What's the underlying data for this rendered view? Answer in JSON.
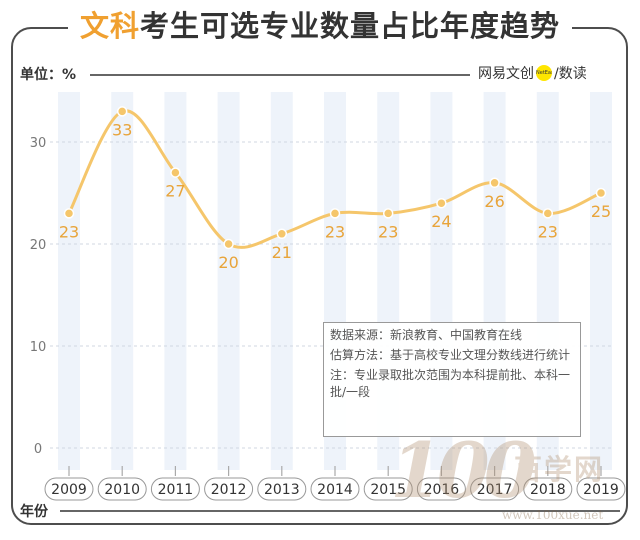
{
  "title_accent": "文科",
  "title_rest": "考生可选专业数量占比年度趋势",
  "unit_label": "单位：%",
  "brand": {
    "left": "网易文创",
    "dot": "NetEase",
    "right": "/数读"
  },
  "x_axis_title": "年份",
  "note": {
    "line1": "数据来源：新浪教育、中国教育在线",
    "line2": "估算方法：基于高校专业文理分数线进行统计",
    "line3": "注：专业录取批次范围为本科提前批、本科一批/一段"
  },
  "watermark": {
    "num": "100",
    "cn": "百学网",
    "url": "www.100xue.net"
  },
  "chart_data": {
    "type": "line",
    "categories": [
      "2009",
      "2010",
      "2011",
      "2012",
      "2013",
      "2014",
      "2015",
      "2016",
      "2017",
      "2018",
      "2019"
    ],
    "values": [
      23,
      33,
      27,
      20,
      21,
      23,
      23,
      24,
      26,
      23,
      25
    ],
    "yticks": [
      0,
      10,
      20,
      30
    ],
    "ylim": [
      0,
      35
    ],
    "title": "文科考生可选专业数量占比年度趋势",
    "xlabel": "年份",
    "ylabel": "单位：%",
    "colors": {
      "line": "#f5c66b",
      "label": "#e8a43a",
      "stripe": "#eef3fa",
      "grid": "#d0d7e2"
    },
    "grid": true,
    "curve": "smooth"
  }
}
